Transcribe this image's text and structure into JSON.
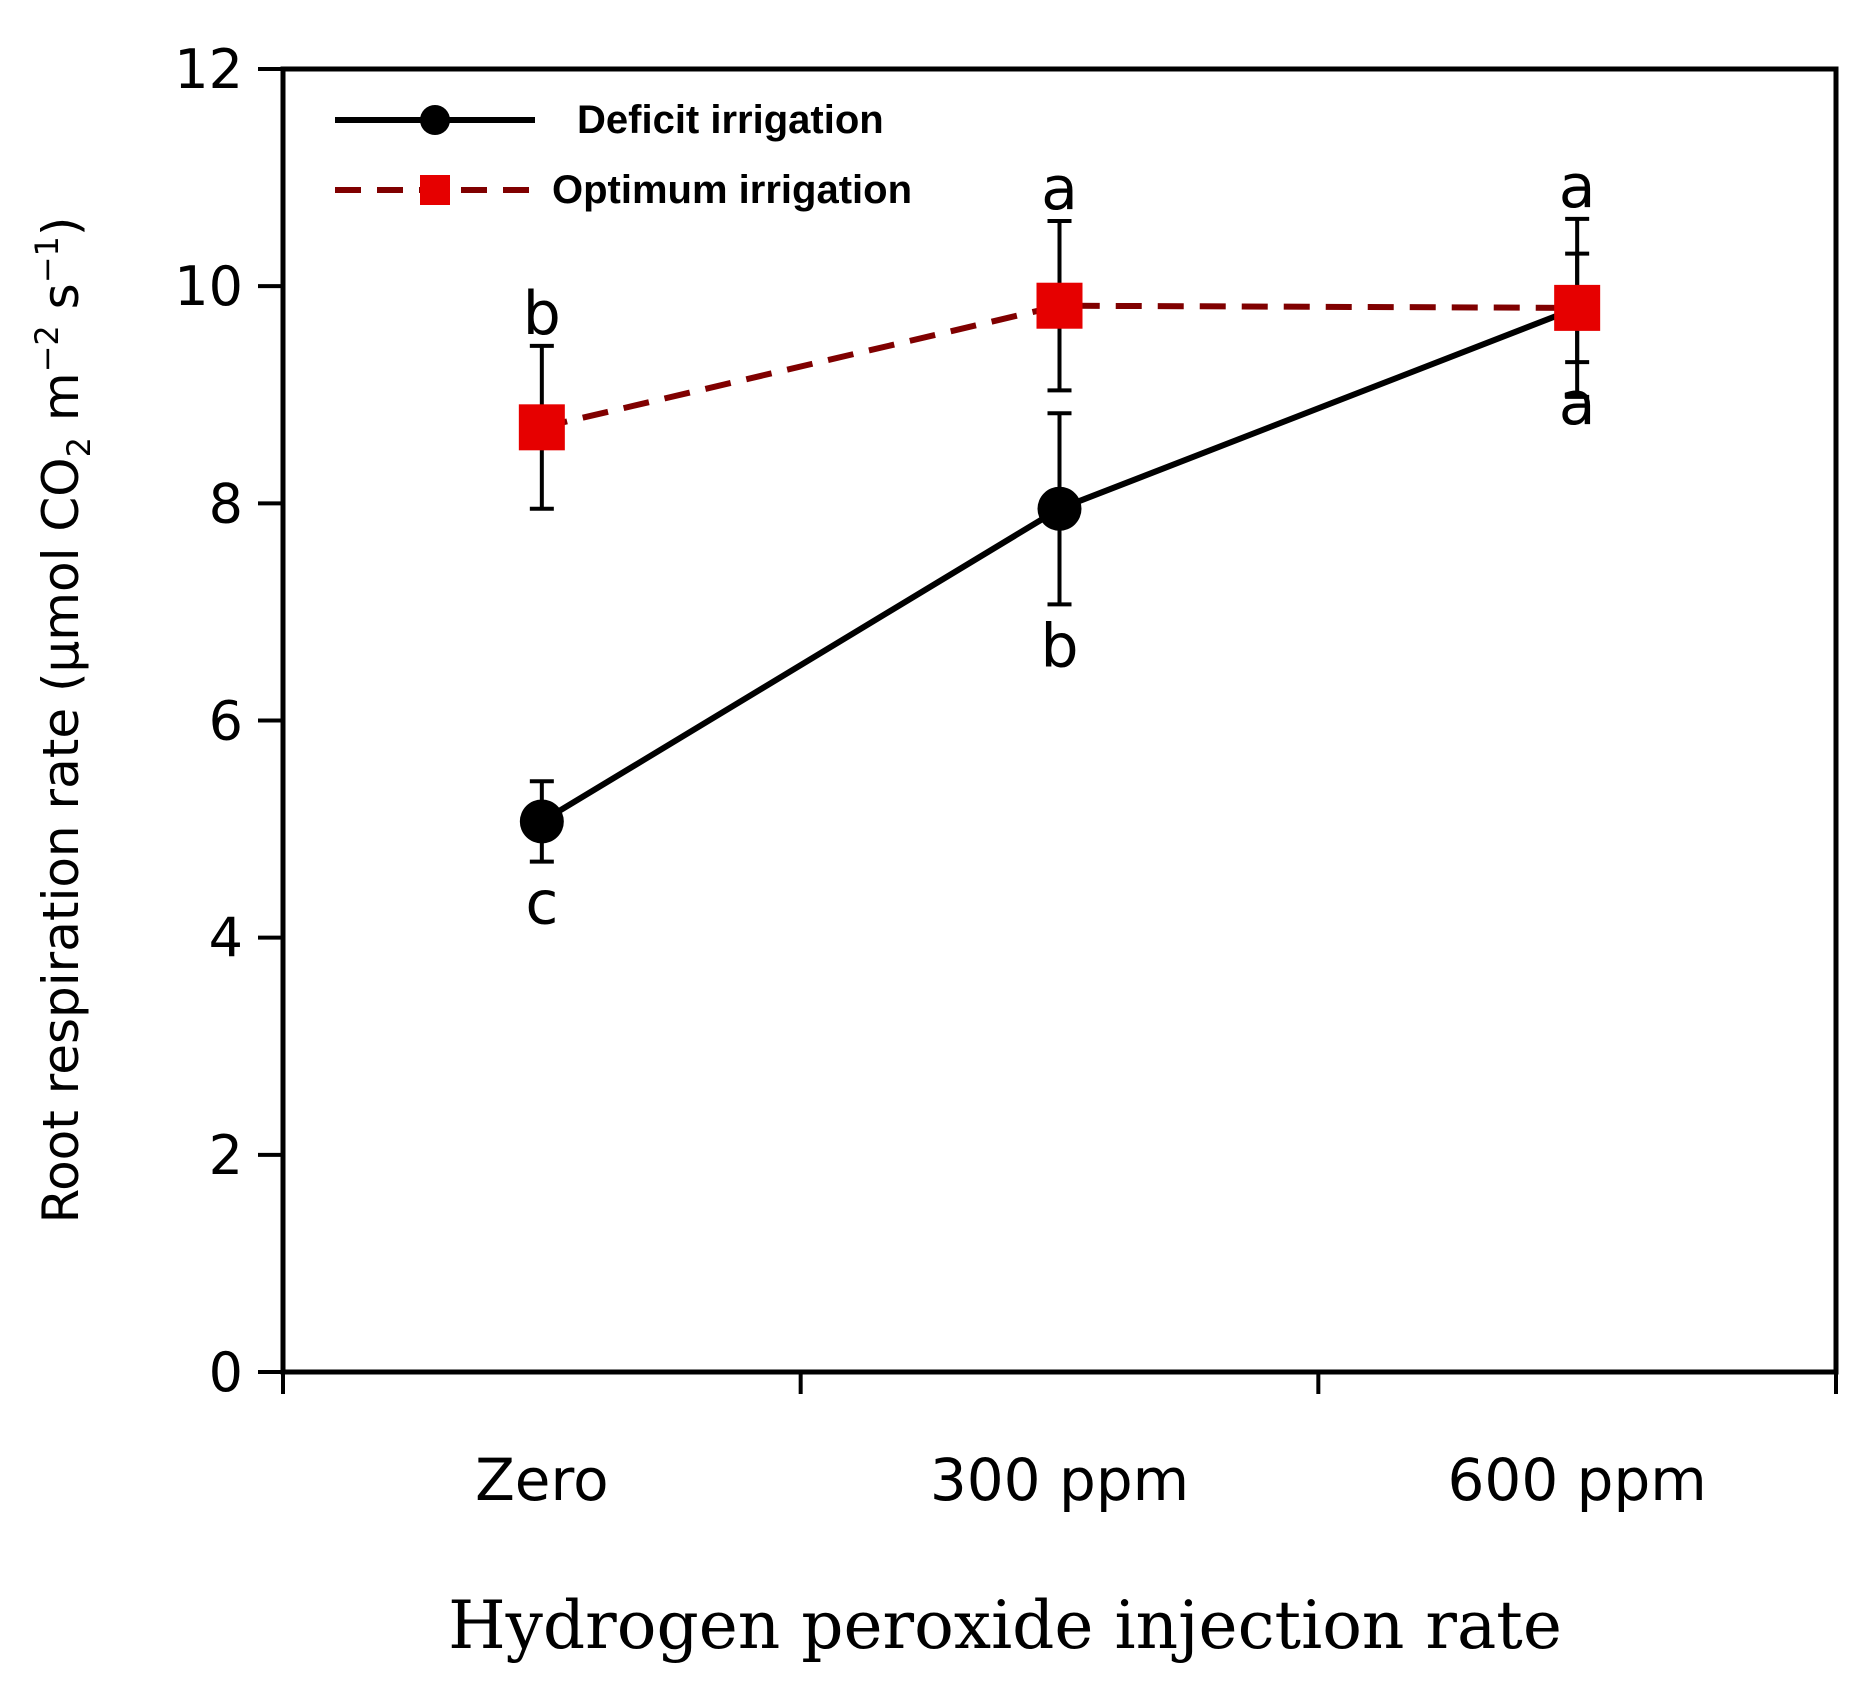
{
  "chart_data": {
    "type": "line",
    "title": "",
    "xlabel": "Hydrogen peroxide injection rate",
    "ylabel": {
      "prefix": "Root respiration rate  (µmol CO",
      "sub": "2",
      "mid1": " m",
      "sup1": "−2",
      "mid2": " s",
      "sup2": "−1",
      "suffix": ")"
    },
    "categories": [
      "Zero",
      "300 ppm",
      "600 ppm"
    ],
    "ylim": [
      0,
      12
    ],
    "yticks": [
      0,
      2,
      4,
      6,
      8,
      10,
      12
    ],
    "ytick_labels": [
      "0",
      "2",
      "4",
      "6",
      "8",
      "10",
      "12"
    ],
    "grid": false,
    "legend_position": "top-left",
    "series": [
      {
        "name": "Deficit irrigation",
        "values": [
          5.07,
          7.95,
          9.8
        ],
        "errors": [
          0.37,
          0.88,
          0.5
        ],
        "letters": [
          "c",
          "b",
          "a"
        ],
        "letter_side": [
          "below",
          "below",
          "below"
        ],
        "color": "#000000",
        "marker": "circle",
        "line_style": "solid"
      },
      {
        "name": "Optimum irrigation",
        "values": [
          8.7,
          9.82,
          9.8
        ],
        "errors": [
          0.75,
          0.78,
          0.82
        ],
        "letters": [
          "b",
          "a",
          "a"
        ],
        "letter_side": [
          "above",
          "above",
          "above"
        ],
        "color": "#e60000",
        "line_color": "#800000",
        "marker": "square",
        "line_style": "dashed"
      }
    ]
  }
}
